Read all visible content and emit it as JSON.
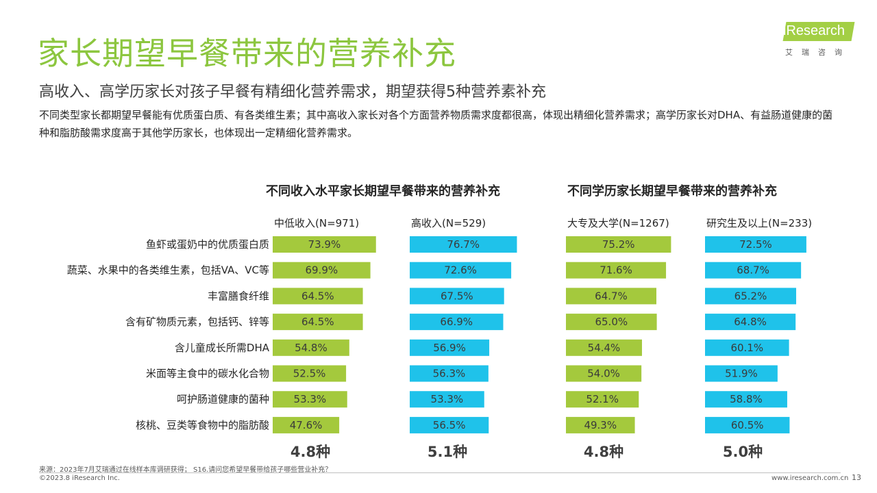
{
  "title": "家长期望早餐带来的营养补充",
  "subtitle": "高收入、高学历家长对孩子早餐有精细化营养需求，期望获得5种营养素补充",
  "description": "不同类型家长都期望早餐能有优质蛋白质、有各类维生素；其中高收入家长对各个方面营养物质需求度都很高，体现出精细化营养需求；高学历家长对DHA、有益肠道健康的菌种和脂肪酸需求度高于其他学历家长，也体现出一定精细化营养需求。",
  "logo": {
    "name": "iResearch",
    "sub": "艾瑞咨询"
  },
  "footnote": "来源：2023年7月艾瑞通过在线样本库调研获得；  S16.请问您希望早餐带给孩子哪些营业补充？",
  "copyright": "©2023.8 iResearch Inc.",
  "website": "www.iresearch.com.cn",
  "page_number": "13",
  "colors": {
    "green": "#a4c93d",
    "blue": "#1fc2ea",
    "title_green": "#8cc63f"
  },
  "chart_data": [
    {
      "type": "bar",
      "title": "不同收入水平家长期望早餐带来的营养补充",
      "categories": [
        "鱼虾或蛋奶中的优质蛋白质",
        "蔬菜、水果中的各类维生素，包括VA、VC等",
        "丰富膳食纤维",
        "含有矿物质元素，包括钙、锌等",
        "含儿童成长所需DHA",
        "米面等主食中的碳水化合物",
        "呵护肠道健康的菌种",
        "核桃、豆类等食物中的脂肪酸"
      ],
      "series": [
        {
          "name": "中低收入(N=971)",
          "values": [
            73.9,
            69.9,
            64.5,
            64.5,
            54.8,
            52.5,
            53.3,
            47.6
          ],
          "labels": [
            "73.9%",
            "69.9%",
            "64.5%",
            "64.5%",
            "54.8%",
            "52.5%",
            "53.3%",
            "47.6%"
          ],
          "total": "4.8种",
          "color": "#a4c93d"
        },
        {
          "name": "高收入(N=529)",
          "values": [
            76.7,
            72.6,
            67.5,
            66.9,
            56.9,
            56.3,
            53.3,
            56.5
          ],
          "labels": [
            "76.7%",
            "72.6%",
            "67.5%",
            "66.9%",
            "56.9%",
            "56.3%",
            "53.3%",
            "56.5%"
          ],
          "total": "5.1种",
          "color": "#1fc2ea"
        }
      ]
    },
    {
      "type": "bar",
      "title": "不同学历家长期望早餐带来的营养补充",
      "categories": [
        "鱼虾或蛋奶中的优质蛋白质",
        "蔬菜、水果中的各类维生素，包括VA、VC等",
        "丰富膳食纤维",
        "含有矿物质元素，包括钙、锌等",
        "含儿童成长所需DHA",
        "米面等主食中的碳水化合物",
        "呵护肠道健康的菌种",
        "核桃、豆类等食物中的脂肪酸"
      ],
      "series": [
        {
          "name": "大专及大学(N=1267)",
          "values": [
            75.2,
            71.6,
            64.7,
            65.0,
            54.4,
            54.0,
            52.1,
            49.3
          ],
          "labels": [
            "75.2%",
            "71.6%",
            "64.7%",
            "65.0%",
            "54.4%",
            "54.0%",
            "52.1%",
            "49.3%"
          ],
          "total": "4.8种",
          "color": "#a4c93d"
        },
        {
          "name": "研究生及以上(N=233)",
          "values": [
            72.5,
            68.7,
            65.2,
            64.8,
            60.1,
            51.9,
            58.8,
            60.5
          ],
          "labels": [
            "72.5%",
            "68.7%",
            "65.2%",
            "64.8%",
            "60.1%",
            "51.9%",
            "58.8%",
            "60.5%"
          ],
          "total": "5.0种",
          "color": "#1fc2ea"
        }
      ]
    }
  ]
}
